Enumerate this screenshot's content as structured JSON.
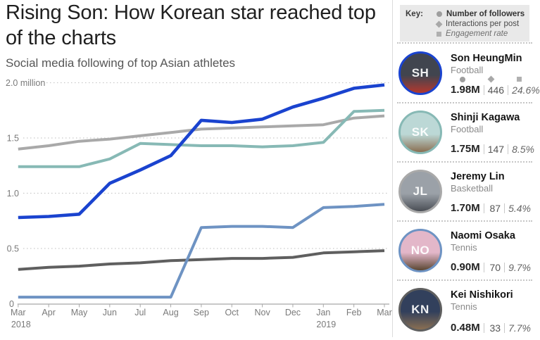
{
  "header": {
    "title": "Rising Son: How Korean star reached top of the charts",
    "subtitle": "Social media following of top Asian athletes"
  },
  "key": {
    "label": "Key:",
    "items": [
      {
        "icon": "circle-icon",
        "label": "Number of followers",
        "style": "bold"
      },
      {
        "icon": "diamond-icon",
        "label": "Interactions per post",
        "style": "regular"
      },
      {
        "icon": "square-icon",
        "label": "Engagement rate",
        "style": "italic"
      }
    ]
  },
  "athletes": [
    {
      "name": "Son HeungMin",
      "sport": "Football",
      "followers": "1.98M",
      "interactions": "446",
      "engagement": "24.6%",
      "initials": "SH",
      "color": "#1a43cf",
      "avatar_colors": [
        "#41454f",
        "#b5382e"
      ],
      "show_icons": true
    },
    {
      "name": "Shinji Kagawa",
      "sport": "Football",
      "followers": "1.75M",
      "interactions": "147",
      "engagement": "8.5%",
      "initials": "SK",
      "color": "#87b9b5",
      "avatar_colors": [
        "#bcd8d6",
        "#8a6f52"
      ],
      "show_icons": false
    },
    {
      "name": "Jeremy Lin",
      "sport": "Basketball",
      "followers": "1.70M",
      "interactions": "87",
      "engagement": "5.4%",
      "initials": "JL",
      "color": "#a9a9a9",
      "avatar_colors": [
        "#9ba1a8",
        "#4a4e55"
      ],
      "show_icons": false
    },
    {
      "name": "Naomi Osaka",
      "sport": "Tennis",
      "followers": "0.90M",
      "interactions": "70",
      "engagement": "9.7%",
      "initials": "NO",
      "color": "#6e93c3",
      "avatar_colors": [
        "#e3b7c9",
        "#5a4632"
      ],
      "show_icons": false
    },
    {
      "name": "Kei Nishikori",
      "sport": "Tennis",
      "followers": "0.48M",
      "interactions": "33",
      "engagement": "7.7%",
      "initials": "KN",
      "color": "#5f5f5f",
      "avatar_colors": [
        "#32405c",
        "#8a6f52"
      ],
      "show_icons": false
    }
  ],
  "chart_data": {
    "type": "line",
    "title": "Rising Son: How Korean star reached top of the charts",
    "subtitle": "Social media following of top Asian athletes",
    "unit": "millions of followers",
    "categories": [
      "Mar",
      "Apr",
      "May",
      "Jun",
      "Jul",
      "Aug",
      "Sep",
      "Oct",
      "Nov",
      "Dec",
      "Jan",
      "Feb",
      "Mar"
    ],
    "year_labels": [
      {
        "index": 0,
        "label": "2018"
      },
      {
        "index": 10,
        "label": "2019"
      }
    ],
    "ylim": [
      0,
      2.0
    ],
    "yticks": [
      {
        "value": 2.0,
        "label": "2.0 million"
      },
      {
        "value": 1.5,
        "label": "1.5"
      },
      {
        "value": 1.0,
        "label": "1.0"
      },
      {
        "value": 0.5,
        "label": "0.5"
      },
      {
        "value": 0,
        "label": "0"
      }
    ],
    "grid": "horizontal-dotted",
    "legend_position": "sidebar-right",
    "series": [
      {
        "name": "Jeremy Lin",
        "color": "#a9a9a9",
        "emphasis": false,
        "values": [
          1.4,
          1.43,
          1.47,
          1.49,
          1.52,
          1.55,
          1.58,
          1.59,
          1.6,
          1.61,
          1.62,
          1.68,
          1.7
        ]
      },
      {
        "name": "Kei Nishikori",
        "color": "#5f5f5f",
        "emphasis": false,
        "values": [
          0.31,
          0.33,
          0.34,
          0.36,
          0.37,
          0.39,
          0.4,
          0.41,
          0.41,
          0.42,
          0.46,
          0.47,
          0.48
        ]
      },
      {
        "name": "Shinji Kagawa",
        "color": "#87b9b5",
        "emphasis": false,
        "values": [
          1.24,
          1.24,
          1.24,
          1.31,
          1.45,
          1.44,
          1.43,
          1.43,
          1.42,
          1.43,
          1.46,
          1.74,
          1.75
        ]
      },
      {
        "name": "Naomi Osaka",
        "color": "#6e93c3",
        "emphasis": false,
        "values": [
          0.06,
          0.06,
          0.06,
          0.06,
          0.06,
          0.06,
          0.69,
          0.7,
          0.7,
          0.69,
          0.87,
          0.88,
          0.9
        ]
      },
      {
        "name": "Son HeungMin",
        "color": "#1a43cf",
        "emphasis": true,
        "values": [
          0.78,
          0.79,
          0.81,
          1.09,
          1.21,
          1.34,
          1.66,
          1.64,
          1.67,
          1.78,
          1.86,
          1.95,
          1.98
        ]
      }
    ]
  },
  "colors": {
    "accent_blue": "#1a43cf",
    "grid": "#c9c9c9",
    "axis": "#a8a8a8",
    "tick_text": "#7a7a7a",
    "key_bg": "#e9e9e9"
  }
}
